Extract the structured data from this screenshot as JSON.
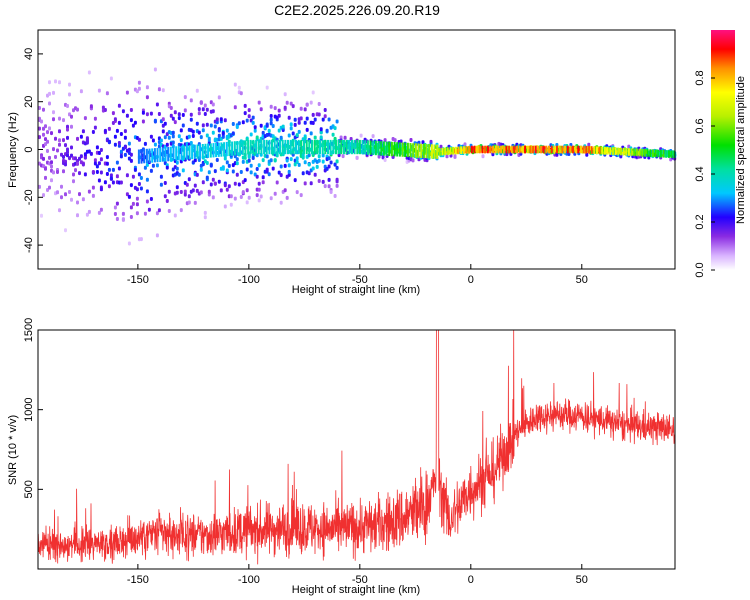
{
  "title": "C2E2.2025.226.09.20.R19",
  "colors": {
    "snr_line": "#f03030",
    "background": "#ffffff",
    "axis": "#000000"
  },
  "chart_data": [
    {
      "type": "heatmap",
      "xlabel": "Height of straight line (km)",
      "ylabel": "Frequency (Hz)",
      "xlim": [
        -195,
        92
      ],
      "ylim": [
        -50,
        50
      ],
      "xticks": [
        -150,
        -100,
        -50,
        0,
        50
      ],
      "yticks": [
        -40,
        -20,
        0,
        20,
        40
      ],
      "colorbar": {
        "label": "Normalized spectral amplitude",
        "range": [
          0,
          1
        ],
        "ticks": [
          0.0,
          0.2,
          0.4,
          0.6,
          0.8
        ]
      },
      "description_points": {
        "x": [
          -190,
          -150,
          -100,
          -50,
          -15,
          0,
          50,
          90
        ],
        "center_freq": [
          0,
          -3,
          1,
          1,
          -1,
          0,
          0,
          -2
        ],
        "peak_amplitude": [
          0.15,
          0.3,
          0.4,
          0.45,
          0.7,
          0.9,
          0.9,
          0.5
        ]
      }
    },
    {
      "type": "line",
      "xlabel": "Height of straight line (km)",
      "ylabel": "SNR (10 * v/v)",
      "xlim": [
        -195,
        92
      ],
      "ylim": [
        0,
        1500
      ],
      "xticks": [
        -150,
        -100,
        -50,
        0,
        50
      ],
      "yticks": [
        500,
        1000,
        1500
      ],
      "series": [
        {
          "x": [
            -195,
            -180,
            -160,
            -150,
            -140,
            -120,
            -100,
            -80,
            -60,
            -40,
            -30,
            -20,
            -15,
            -10,
            0,
            10,
            20,
            30,
            40,
            50,
            60,
            70,
            80,
            92
          ],
          "y": [
            150,
            160,
            170,
            200,
            220,
            210,
            240,
            260,
            250,
            280,
            320,
            400,
            600,
            300,
            500,
            600,
            850,
            960,
            970,
            960,
            930,
            900,
            890,
            880
          ]
        }
      ]
    }
  ]
}
